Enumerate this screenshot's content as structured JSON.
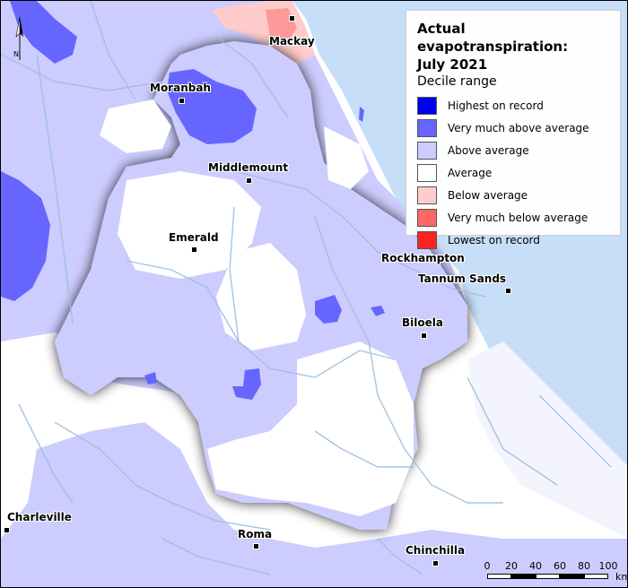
{
  "legend": {
    "title": "Actual evapotranspiration:\nJuly 2021",
    "subtitle": "Decile range",
    "items": [
      {
        "label": "Highest on record",
        "color": "#0000ee"
      },
      {
        "label": "Very much above average",
        "color": "#6666ff"
      },
      {
        "label": "Above average",
        "color": "#ccccff"
      },
      {
        "label": "Average",
        "color": "#ffffff"
      },
      {
        "label": "Below average",
        "color": "#ffcccc"
      },
      {
        "label": "Very much below average",
        "color": "#ff6666"
      },
      {
        "label": "Lowest on record",
        "color": "#ff2222"
      }
    ]
  },
  "towns": {
    "mackay": "Mackay",
    "moranbah": "Moranbah",
    "middlemount": "Middlemount",
    "emerald": "Emerald",
    "rockhampton": "Rockhampton",
    "tannum_sands": "Tannum Sands",
    "biloela": "Biloela",
    "charleville": "Charleville",
    "roma": "Roma",
    "chinchilla": "Chinchilla"
  },
  "north_label": "N",
  "scale": {
    "ticks": [
      "0",
      "20",
      "40",
      "60",
      "80",
      "100"
    ],
    "unit": "km"
  },
  "colors": {
    "ocean": "#c6def7",
    "land_default": "#ffffff",
    "rivers": "#9dbfdf"
  }
}
